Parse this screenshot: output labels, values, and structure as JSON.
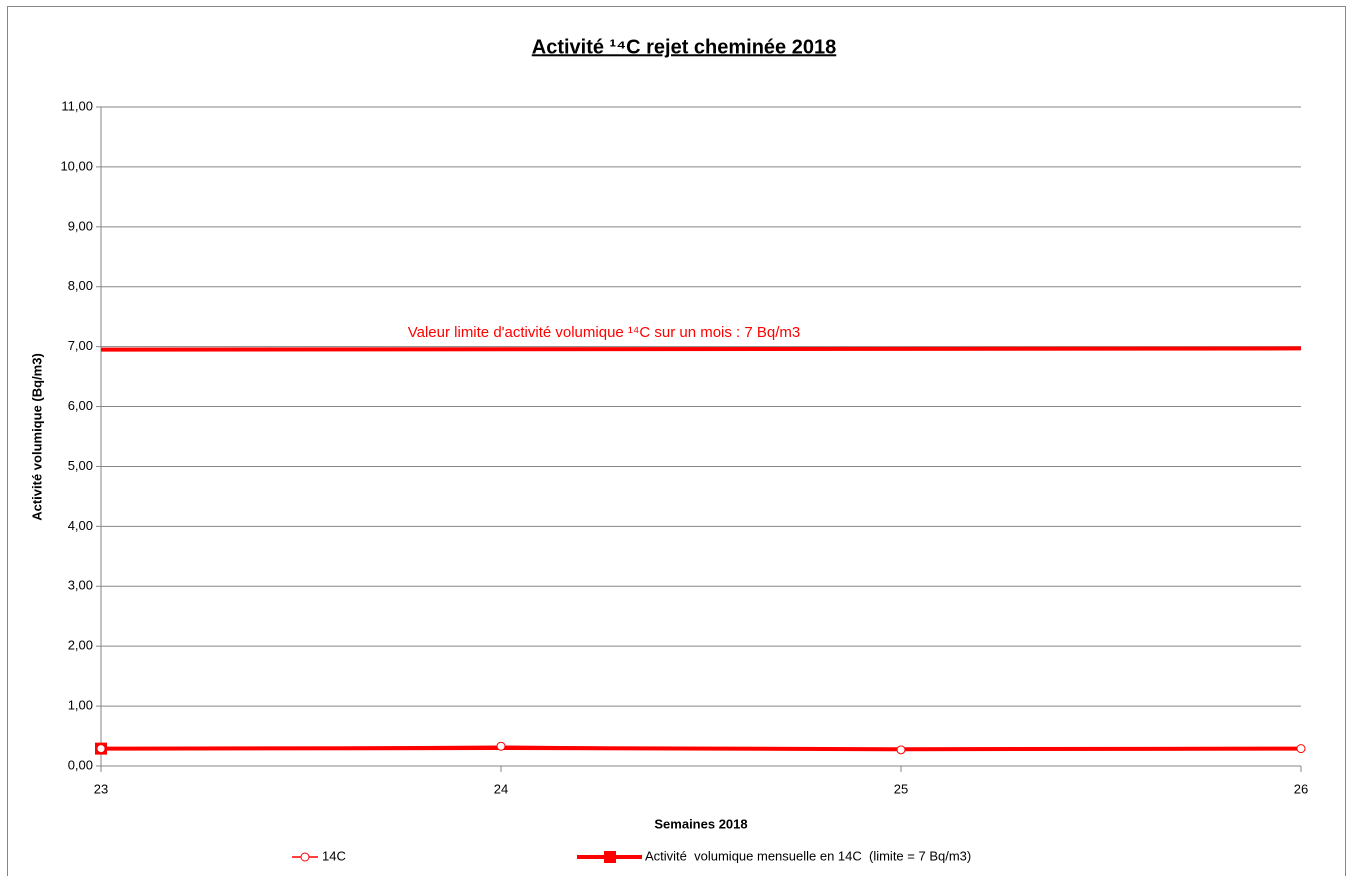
{
  "chart_data": {
    "type": "line",
    "title": "Activité ¹⁴C rejet cheminée 2018",
    "x_label": "Semaines 2018",
    "y_label": "Activité volumique (Bq/m3)",
    "annotation": "Valeur limite d'activité volumique ¹⁴C sur un mois : 7 Bq/m3",
    "x": [
      23,
      24,
      25,
      26
    ],
    "series": [
      {
        "name": "14C",
        "color": "#ff0000",
        "marker": "circle",
        "values": [
          0.29,
          0.33,
          0.27,
          0.29
        ]
      },
      {
        "name": "Activité  volumique mensuelle en 14C  (limite = 7 Bq/m3)",
        "color": "#ff0000",
        "marker": "square",
        "marker_at": [
          23
        ],
        "values": [
          0.29,
          0.3,
          0.28,
          0.29
        ]
      }
    ],
    "limit_line": {
      "x": [
        23,
        26
      ],
      "values": [
        6.95,
        6.97
      ],
      "color": "#ff0000"
    },
    "xlim": [
      23,
      26
    ],
    "xticks": [
      23,
      24,
      25,
      26
    ],
    "ylim": [
      0,
      11
    ],
    "yticks": [
      {
        "value": 0,
        "label": "0,00"
      },
      {
        "value": 1,
        "label": "1,00"
      },
      {
        "value": 2,
        "label": "2,00"
      },
      {
        "value": 3,
        "label": "3,00"
      },
      {
        "value": 4,
        "label": "4,00"
      },
      {
        "value": 5,
        "label": "5,00"
      },
      {
        "value": 6,
        "label": "6,00"
      },
      {
        "value": 7,
        "label": "7,00"
      },
      {
        "value": 8,
        "label": "8,00"
      },
      {
        "value": 9,
        "label": "9,00"
      },
      {
        "value": 10,
        "label": "10,00"
      },
      {
        "value": 11,
        "label": "11,00"
      }
    ],
    "grid": true,
    "legend": "bottom"
  }
}
